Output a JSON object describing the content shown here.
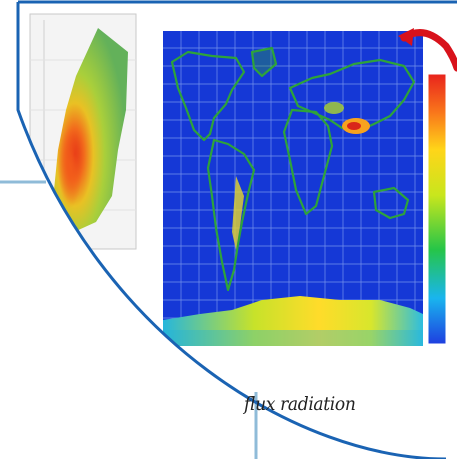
{
  "caption": "flux radiation",
  "colors": {
    "frame_blue": "#1a63b3",
    "panel_line_blue": "#8fbbd8",
    "ocean_blue": "#1538d6",
    "grid_line": "#9db8f5",
    "land_green": "#2ea33a",
    "hotspot_red": "#e0261a",
    "arrow_red": "#d8121b",
    "colorbar": [
      "#1e3ee0",
      "#19b5ee",
      "#26c548",
      "#c8e61d",
      "#ffd519",
      "#f9751b",
      "#e8231c"
    ]
  },
  "icons": {
    "corner_arrow": "curved-arrow-icon",
    "colorbar": "color-scale-icon"
  }
}
